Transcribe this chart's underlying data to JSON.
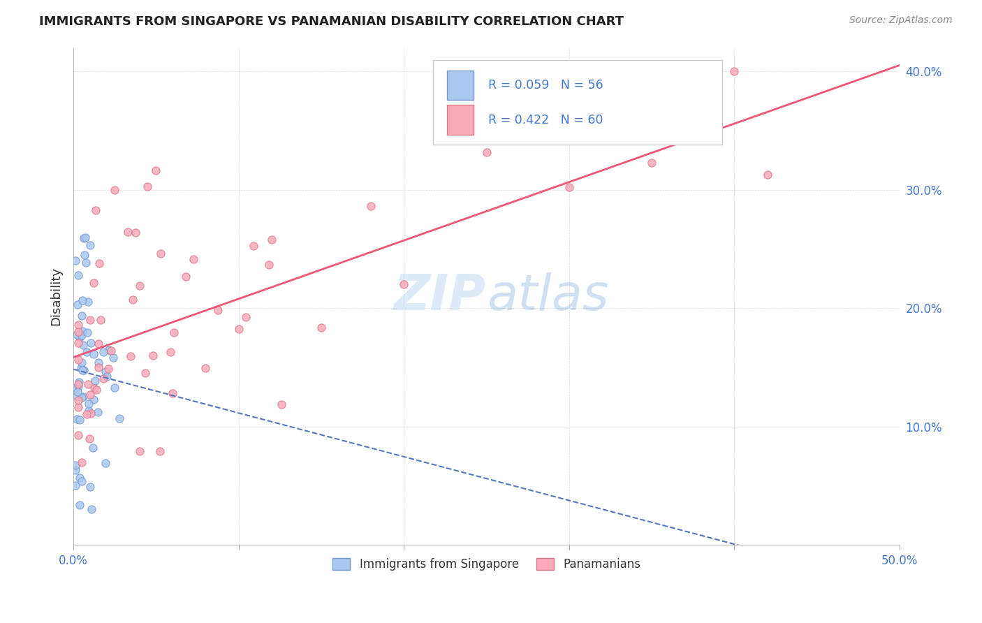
{
  "title": "IMMIGRANTS FROM SINGAPORE VS PANAMANIAN DISABILITY CORRELATION CHART",
  "source": "Source: ZipAtlas.com",
  "ylabel": "Disability",
  "xlim": [
    0.0,
    0.5
  ],
  "ylim": [
    0.0,
    0.42
  ],
  "ytick_vals": [
    0.0,
    0.1,
    0.2,
    0.3,
    0.4
  ],
  "xtick_vals": [
    0.0,
    0.1,
    0.2,
    0.3,
    0.4,
    0.5
  ],
  "xtick_labels": [
    "0.0%",
    "",
    "",
    "",
    "",
    "50.0%"
  ],
  "right_ytick_labels": [
    "10.0%",
    "20.0%",
    "30.0%",
    "40.0%"
  ],
  "right_ytick_vals": [
    0.1,
    0.2,
    0.3,
    0.4
  ],
  "watermark_zip": "ZIP",
  "watermark_atlas": "atlas",
  "singapore_color": "#aac8f0",
  "singapore_edge": "#7799cc",
  "panama_color": "#f8aabb",
  "panama_edge": "#dd7788",
  "singapore_line_color": "#5577bb",
  "panama_line_color": "#ee5577",
  "legend_text_color": "#4477cc",
  "title_color": "#222222",
  "source_color": "#888888",
  "ylabel_color": "#333333",
  "grid_color": "#cccccc",
  "axis_color": "#aaaaaa",
  "tick_label_color": "#4477cc",
  "background": "#ffffff",
  "singapore_line_intercept": 0.148,
  "singapore_line_slope": 0.12,
  "panama_line_intercept": 0.155,
  "panama_line_slope": 0.56
}
